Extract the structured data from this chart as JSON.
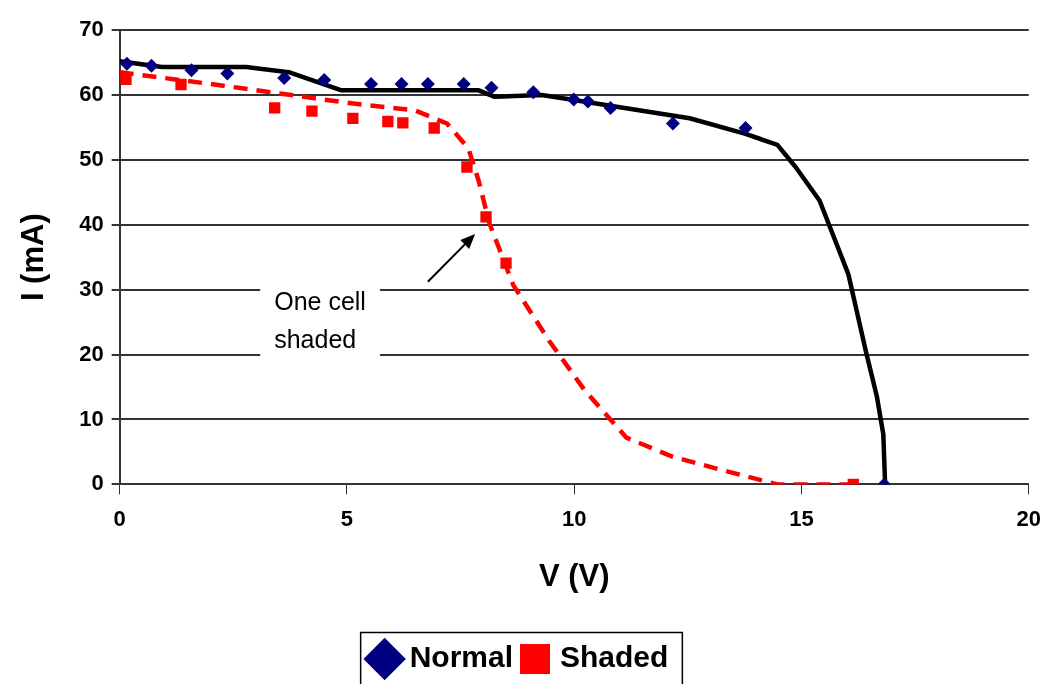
{
  "chart_data": {
    "type": "scatter",
    "xlabel": "V (V)",
    "ylabel": "I (mA)",
    "xlim": [
      0,
      20
    ],
    "xticks": [
      0,
      5,
      10,
      15,
      20
    ],
    "ylim": [
      0,
      70
    ],
    "yticks": [
      0,
      10,
      20,
      30,
      40,
      50,
      60,
      70
    ],
    "grid": "y",
    "legend": "bottom",
    "annotations": [
      "One cell\nshaded"
    ],
    "series": [
      {
        "name": "Normal",
        "color": "#000080",
        "marker": "diamond",
        "x": [
          0.16,
          0.7,
          1.58,
          2.37,
          3.62,
          4.5,
          5.53,
          6.2,
          6.78,
          7.57,
          8.18,
          9.1,
          9.99,
          10.3,
          10.8,
          12.17,
          13.77,
          16.82
        ],
        "values": [
          64.8,
          64.5,
          63.8,
          63.3,
          62.6,
          62.3,
          61.7,
          61.7,
          61.7,
          61.7,
          61.1,
          60.4,
          59.3,
          59,
          58,
          55.6,
          54.9,
          0
        ]
      },
      {
        "name": "Shaded",
        "color": "#ff0000",
        "marker": "square",
        "x": [
          0.14,
          1.35,
          3.41,
          4.23,
          5.13,
          5.9,
          6.23,
          6.92,
          7.64,
          8.06,
          8.5,
          16.14
        ],
        "values": [
          62.4,
          61.6,
          58,
          57.5,
          56.4,
          55.9,
          55.7,
          54.9,
          48.9,
          41.2,
          34.1,
          0
        ]
      },
      {
        "type": "line",
        "color": "#000000",
        "line_style": "solid",
        "marker": "none",
        "x": [
          0,
          0.93,
          2.79,
          3.72,
          4.88,
          7.9,
          8.25,
          9.29,
          10.2,
          12.54,
          13.77,
          14.47,
          14.87,
          15.4,
          16.03,
          16.42,
          16.66,
          16.8,
          16.84
        ],
        "values": [
          65.2,
          64.3,
          64.3,
          63.5,
          60.7,
          60.7,
          59.7,
          60,
          59,
          56.4,
          54,
          52.3,
          48.9,
          43.7,
          32.4,
          20.4,
          13.5,
          7.7,
          0
        ]
      },
      {
        "type": "line",
        "color": "#ff0000",
        "line_style": "dashed",
        "marker": "none",
        "x": [
          0,
          2.09,
          5.1,
          6.5,
          7.2,
          7.67,
          7.9,
          8.13,
          8.66,
          9.45,
          10.22,
          11.15,
          12.15,
          13.31,
          14.47,
          16.03
        ],
        "values": [
          63.5,
          61.6,
          58.7,
          57.6,
          55.6,
          51.8,
          46.7,
          40.3,
          30.7,
          22.1,
          14.6,
          7.2,
          4.3,
          2.1,
          0,
          0
        ]
      }
    ]
  }
}
